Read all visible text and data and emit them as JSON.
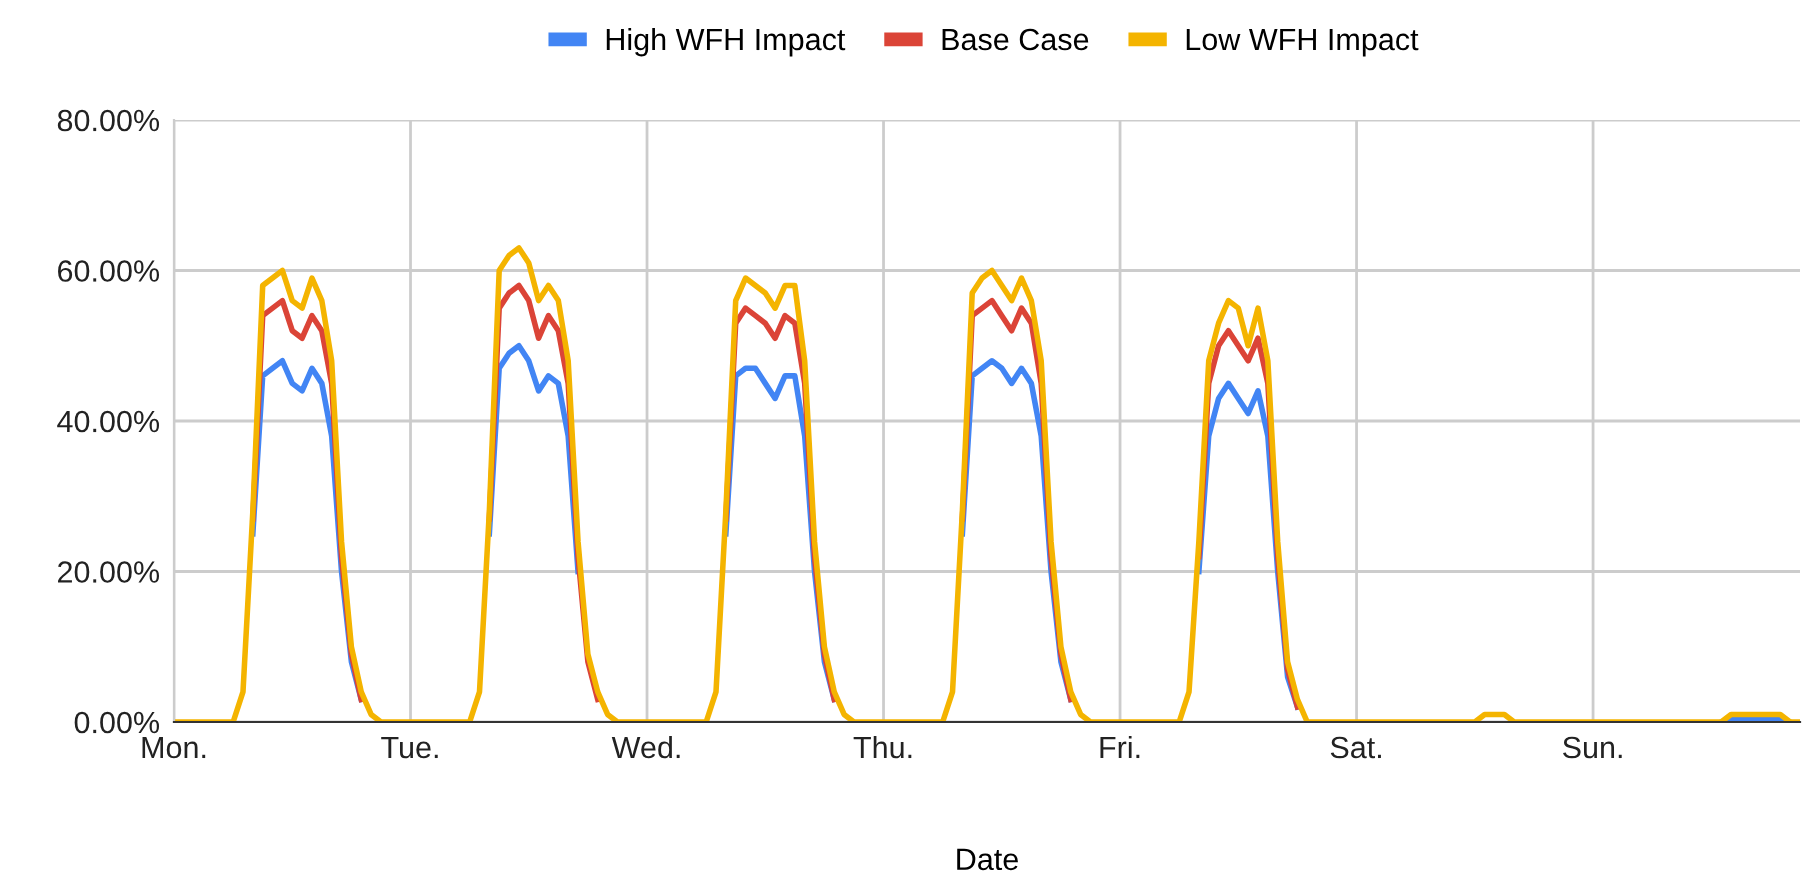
{
  "chart_data": {
    "type": "line",
    "xlabel": "Date",
    "legend": "top",
    "grid": true,
    "marker": "none",
    "line_style": "solid",
    "categories": [
      "Mon.",
      null,
      null,
      null,
      null,
      null,
      null,
      null,
      null,
      null,
      null,
      null,
      null,
      null,
      null,
      null,
      null,
      null,
      null,
      null,
      null,
      null,
      null,
      null,
      "Tue.",
      null,
      null,
      null,
      null,
      null,
      null,
      null,
      null,
      null,
      null,
      null,
      null,
      null,
      null,
      null,
      null,
      null,
      null,
      null,
      null,
      null,
      null,
      null,
      "Wed.",
      null,
      null,
      null,
      null,
      null,
      null,
      null,
      null,
      null,
      null,
      null,
      null,
      null,
      null,
      null,
      null,
      null,
      null,
      null,
      null,
      null,
      null,
      null,
      "Thu.",
      null,
      null,
      null,
      null,
      null,
      null,
      null,
      null,
      null,
      null,
      null,
      null,
      null,
      null,
      null,
      null,
      null,
      null,
      null,
      null,
      null,
      null,
      null,
      "Fri.",
      null,
      null,
      null,
      null,
      null,
      null,
      null,
      null,
      null,
      null,
      null,
      null,
      null,
      null,
      null,
      null,
      null,
      null,
      null,
      null,
      null,
      null,
      null,
      "Sat.",
      null,
      null,
      null,
      null,
      null,
      null,
      null,
      null,
      null,
      null,
      null,
      null,
      null,
      null,
      null,
      null,
      null,
      null,
      null,
      null,
      null,
      null,
      null,
      "Sun.",
      null,
      null,
      null,
      null,
      null,
      null,
      null,
      null,
      null,
      null,
      null,
      null,
      null,
      null,
      null,
      null,
      null,
      null,
      null,
      null,
      null
    ],
    "ylim": [
      0,
      80
    ],
    "yticks": [
      {
        "value": 0,
        "label": "0.00%"
      },
      {
        "value": 20,
        "label": "20.00%"
      },
      {
        "value": 40,
        "label": "40.00%"
      },
      {
        "value": 60,
        "label": "60.00%"
      },
      {
        "value": 80,
        "label": "80.00%"
      }
    ],
    "series": [
      {
        "name": "High WFH Impact",
        "color": "#4285f4",
        "values": [
          null,
          null,
          null,
          null,
          null,
          null,
          null,
          null,
          25,
          46,
          47,
          48,
          45,
          44,
          47,
          45,
          38,
          20,
          8,
          3,
          null,
          null,
          null,
          null,
          null,
          null,
          null,
          null,
          null,
          null,
          null,
          null,
          25,
          47,
          49,
          50,
          48,
          44,
          46,
          45,
          38,
          20,
          null,
          null,
          null,
          null,
          null,
          null,
          null,
          null,
          null,
          null,
          null,
          null,
          null,
          null,
          25,
          46,
          47,
          47,
          45,
          43,
          46,
          46,
          38,
          20,
          8,
          3,
          null,
          null,
          null,
          null,
          null,
          null,
          null,
          null,
          null,
          null,
          null,
          null,
          25,
          46,
          47,
          48,
          47,
          45,
          47,
          45,
          38,
          20,
          8,
          3,
          null,
          null,
          null,
          null,
          null,
          null,
          null,
          null,
          null,
          null,
          null,
          null,
          20,
          38,
          43,
          45,
          43,
          41,
          44,
          38,
          20,
          6,
          2,
          null,
          null,
          null,
          null,
          null,
          null,
          null,
          null,
          null,
          null,
          null,
          null,
          null,
          null,
          null,
          null,
          null,
          null,
          null,
          null,
          null,
          null,
          null,
          null,
          null,
          null,
          null,
          null,
          null,
          null,
          null,
          null,
          null,
          null,
          null,
          null,
          null,
          null,
          null,
          null,
          null,
          null,
          0,
          0.5,
          0.5,
          0.5,
          0.5,
          0.5,
          0.5,
          0,
          null
        ]
      },
      {
        "name": "Base Case",
        "color": "#db4437",
        "values": [
          null,
          null,
          null,
          null,
          null,
          null,
          null,
          null,
          27,
          54,
          55,
          56,
          52,
          51,
          54,
          52,
          45,
          22,
          9,
          3,
          null,
          null,
          null,
          null,
          null,
          null,
          null,
          null,
          null,
          null,
          null,
          null,
          27,
          55,
          57,
          58,
          56,
          51,
          54,
          52,
          45,
          22,
          8,
          3,
          null,
          null,
          null,
          null,
          null,
          null,
          null,
          null,
          null,
          null,
          null,
          null,
          27,
          53,
          55,
          54,
          53,
          51,
          54,
          53,
          45,
          22,
          9,
          3,
          null,
          null,
          null,
          null,
          null,
          null,
          null,
          null,
          null,
          null,
          null,
          null,
          27,
          54,
          55,
          56,
          54,
          52,
          55,
          53,
          45,
          22,
          9,
          3,
          null,
          null,
          null,
          null,
          null,
          null,
          null,
          null,
          null,
          null,
          null,
          null,
          22,
          45,
          50,
          52,
          50,
          48,
          51,
          45,
          22,
          7,
          2,
          null,
          null,
          null,
          null,
          null,
          null,
          null,
          null,
          null,
          null,
          null,
          null,
          null,
          null,
          null,
          null,
          null,
          null,
          null,
          null,
          null,
          null,
          null,
          null,
          null,
          null,
          null,
          null,
          null,
          null,
          null,
          null,
          null,
          null,
          null,
          null,
          null,
          null,
          null,
          null,
          null,
          null,
          null,
          null,
          null,
          null,
          null,
          null,
          null,
          null,
          null
        ]
      },
      {
        "name": "Low WFH Impact",
        "color": "#f4b400",
        "values": [
          0,
          0,
          0,
          0,
          0,
          0,
          0,
          4,
          28,
          58,
          59,
          60,
          56,
          55,
          59,
          56,
          48,
          24,
          10,
          4,
          1,
          0,
          0,
          0,
          0,
          0,
          0,
          0,
          0,
          0,
          0,
          4,
          28,
          60,
          62,
          63,
          61,
          56,
          58,
          56,
          48,
          24,
          9,
          4,
          1,
          0,
          0,
          0,
          0,
          0,
          0,
          0,
          0,
          0,
          0,
          4,
          28,
          56,
          59,
          58,
          57,
          55,
          58,
          58,
          48,
          24,
          10,
          4,
          1,
          0,
          0,
          0,
          0,
          0,
          0,
          0,
          0,
          0,
          0,
          4,
          28,
          57,
          59,
          60,
          58,
          56,
          59,
          56,
          48,
          24,
          10,
          4,
          1,
          0,
          0,
          0,
          0,
          0,
          0,
          0,
          0,
          0,
          0,
          4,
          24,
          48,
          53,
          56,
          55,
          50,
          55,
          48,
          24,
          8,
          3,
          0,
          0,
          0,
          0,
          0,
          0,
          0,
          0,
          0,
          0,
          0,
          0,
          0,
          0,
          0,
          0,
          0,
          0,
          1,
          1,
          1,
          0,
          0,
          0,
          0,
          0,
          0,
          0,
          0,
          0,
          0,
          0,
          0,
          0,
          0,
          0,
          0,
          0,
          0,
          0,
          0,
          0,
          0,
          1,
          1,
          1,
          1,
          1,
          1,
          0,
          0
        ]
      }
    ]
  }
}
